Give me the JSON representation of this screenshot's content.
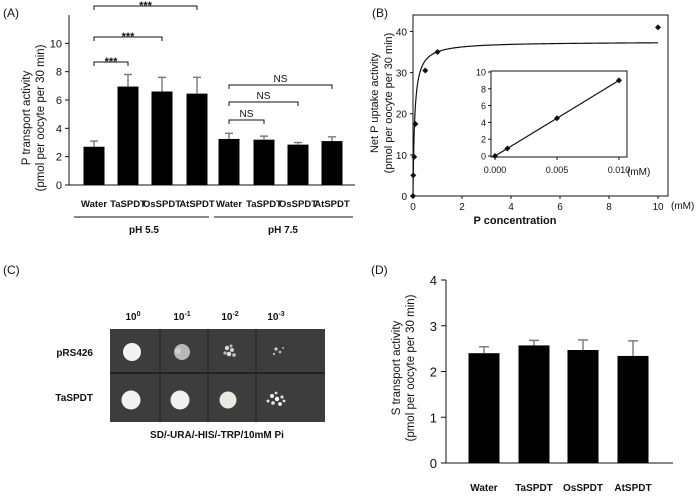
{
  "chart_data": [
    {
      "panel": "(A)",
      "type": "bar",
      "ylabel_line1": "P transport activity",
      "ylabel_line2": "(pmol per oocyte per 30 min)",
      "ylim": [
        0,
        12
      ],
      "yticks": [
        "0",
        "2",
        "4",
        "6",
        "8",
        "10"
      ],
      "groups": [
        {
          "label": "pH 5.5",
          "categories": [
            "Water",
            "TaSPDT",
            "OsSPDT",
            "AtSPDT"
          ],
          "values": [
            2.7,
            6.95,
            6.6,
            6.45
          ],
          "errors": [
            0.4,
            0.85,
            1.0,
            1.15
          ]
        },
        {
          "label": "pH 7.5",
          "categories": [
            "Water",
            "TaSPDT",
            "OsSPDT",
            "AtSPDT"
          ],
          "values": [
            3.25,
            3.2,
            2.85,
            3.1
          ],
          "errors": [
            0.4,
            0.25,
            0.15,
            0.3
          ]
        }
      ],
      "annotations": [
        "***",
        "***",
        "***",
        "NS",
        "NS",
        "NS"
      ]
    },
    {
      "panel": "(B)",
      "type": "scatter",
      "ylabel_line1": "Net P uptake activity",
      "ylabel_line2": "(pmol per oocyte per 30 min)",
      "xlabel": "P concentration",
      "xunit": "(mM)",
      "xlim": [
        0,
        10
      ],
      "ylim": [
        0,
        44
      ],
      "xticks": [
        "0",
        "2",
        "4",
        "6",
        "8",
        "10"
      ],
      "yticks": [
        "0",
        "10",
        "20",
        "30",
        "40"
      ],
      "x": [
        0.0,
        0.01,
        0.05,
        0.1,
        0.5,
        1.0,
        10.0
      ],
      "y": [
        0.0,
        5.0,
        9.5,
        17.5,
        30.5,
        35.0,
        41.0
      ],
      "fit": {
        "Vmax": 37.5,
        "Km": 0.07
      },
      "inset": {
        "type": "line",
        "xunit": "(mM)",
        "xlim": [
          0,
          0.01
        ],
        "ylim": [
          0,
          10
        ],
        "xticks": [
          "0.000",
          "0.005",
          "0.010"
        ],
        "yticks": [
          "0",
          "2",
          "4",
          "6",
          "8",
          "10"
        ],
        "x": [
          0.0,
          0.001,
          0.005,
          0.01
        ],
        "y": [
          0.0,
          0.9,
          4.5,
          9.0
        ]
      }
    },
    {
      "panel": "(D)",
      "type": "bar",
      "ylabel_line1": "S transport activity",
      "ylabel_line2": "(pmol per oocyte per 30 min)",
      "ylim": [
        0,
        4
      ],
      "yticks": [
        "0",
        "1",
        "2",
        "3",
        "4"
      ],
      "categories": [
        "Water",
        "TaSPDT",
        "OsSPDT",
        "AtSPDT"
      ],
      "values": [
        2.4,
        2.57,
        2.47,
        2.34
      ],
      "errors": [
        0.14,
        0.11,
        0.22,
        0.33
      ]
    }
  ],
  "panel_c": {
    "label": "(C)",
    "columns": [
      {
        "base": "10",
        "exp": "0"
      },
      {
        "base": "10",
        "exp": "-1"
      },
      {
        "base": "10",
        "exp": "-2"
      },
      {
        "base": "10",
        "exp": "-3"
      }
    ],
    "rows": [
      "pRS426",
      "TaSPDT"
    ],
    "medium": "SD/-URA/-HIS/-TRP/10mM Pi"
  }
}
